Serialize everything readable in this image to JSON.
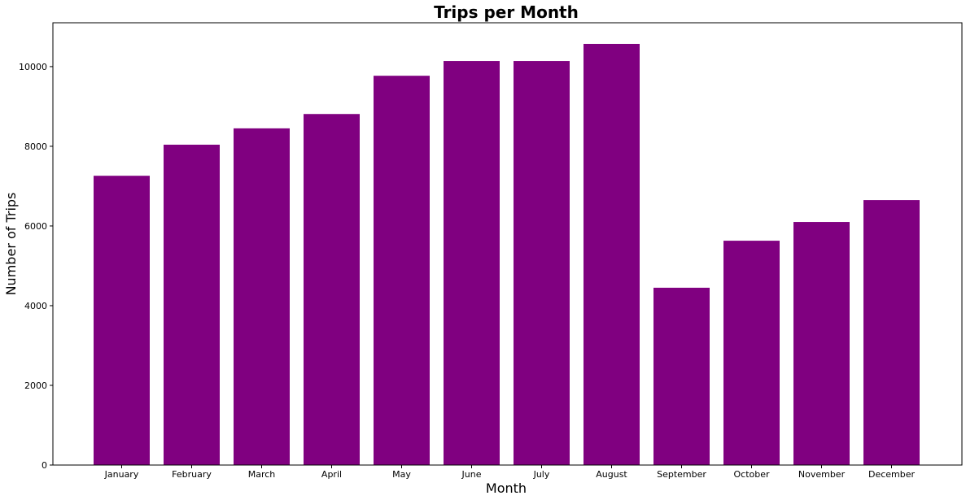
{
  "chart_data": {
    "type": "bar",
    "title": "Trips per Month",
    "xlabel": "Month",
    "ylabel": "Number of Trips",
    "categories": [
      "January",
      "February",
      "March",
      "April",
      "May",
      "June",
      "July",
      "August",
      "September",
      "October",
      "November",
      "December"
    ],
    "values": [
      7260,
      8040,
      8450,
      8810,
      9770,
      10140,
      10140,
      10570,
      4450,
      5630,
      6100,
      6650
    ],
    "ylim": [
      0,
      11100
    ],
    "yticks": [
      0,
      2000,
      4000,
      6000,
      8000,
      10000
    ],
    "bar_color": "#800080",
    "grid": false,
    "legend": "none"
  }
}
